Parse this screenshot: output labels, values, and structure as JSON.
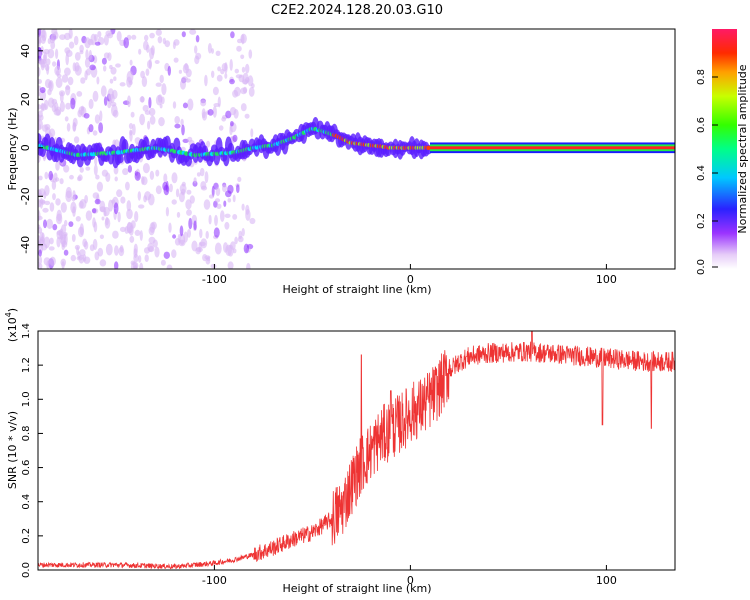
{
  "title": "C2E2.2024.128.20.03.G10",
  "chart_data": [
    {
      "type": "heatmap",
      "xlabel": "Height of straight line (km)",
      "ylabel": "Frequency (Hz)",
      "xlim": [
        -190,
        135
      ],
      "ylim": [
        -50,
        49
      ],
      "x_ticks": [
        -100,
        0,
        100
      ],
      "y_ticks": [
        -40,
        -20,
        0,
        20,
        40
      ],
      "colorbar": {
        "label": "Normalized spectral amplitude",
        "range": [
          0.0,
          1.0
        ],
        "ticks": [
          "0.0",
          "0.2",
          "0.4",
          "0.6",
          "0.8"
        ]
      },
      "ridge_frequency": {
        "x": [
          -190,
          -170,
          -150,
          -130,
          -110,
          -90,
          -80,
          -70,
          -60,
          -50,
          -45,
          -38,
          -30,
          -20,
          -10,
          0,
          10,
          135
        ],
        "y": [
          1,
          -3,
          -2,
          0,
          -3,
          -2,
          0,
          1,
          4,
          8,
          7,
          5,
          2,
          1,
          0,
          0,
          0,
          0
        ]
      }
    },
    {
      "type": "line",
      "xlabel": "Height of straight line (km)",
      "ylabel": "SNR (10 * v/v)",
      "y_scale_label": "(x10",
      "y_scale_exponent": "4",
      "xlim": [
        -190,
        135
      ],
      "ylim": [
        0,
        1.4
      ],
      "x_ticks": [
        -100,
        0,
        100
      ],
      "y_ticks": [
        "0.0",
        "0.2",
        "0.4",
        "0.6",
        "0.8",
        "1.0",
        "1.2",
        "1.4"
      ],
      "color": "#ee3333",
      "series_envelope": {
        "x": [
          -190,
          -150,
          -120,
          -100,
          -90,
          -80,
          -70,
          -60,
          -50,
          -40,
          -35,
          -30,
          -25,
          -20,
          -15,
          -10,
          -5,
          0,
          5,
          10,
          15,
          20,
          25,
          30,
          40,
          60,
          80,
          100,
          120,
          135
        ],
        "y": [
          0.03,
          0.03,
          0.02,
          0.04,
          0.06,
          0.09,
          0.13,
          0.18,
          0.22,
          0.3,
          0.36,
          0.5,
          0.62,
          0.7,
          0.78,
          0.82,
          0.86,
          0.92,
          0.95,
          1.0,
          1.07,
          1.17,
          1.22,
          1.25,
          1.27,
          1.28,
          1.26,
          1.24,
          1.22,
          1.22
        ]
      },
      "spikes": [
        {
          "x": -25,
          "y": 1.26
        },
        {
          "x": -10,
          "y": 1.05
        },
        {
          "x": 98,
          "y": 0.85
        },
        {
          "x": 123,
          "y": 0.83
        },
        {
          "x": 62,
          "y": 1.4
        }
      ]
    }
  ]
}
